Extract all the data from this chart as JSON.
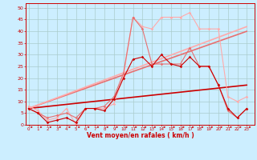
{
  "title": "",
  "xlabel": "Vent moyen/en rafales ( km/h )",
  "ylabel": "",
  "bg_color": "#cceeff",
  "grid_color": "#aacccc",
  "x_ticks": [
    0,
    1,
    2,
    3,
    4,
    5,
    6,
    7,
    8,
    9,
    10,
    11,
    12,
    13,
    14,
    15,
    16,
    17,
    18,
    19,
    20,
    21,
    22,
    23
  ],
  "y_ticks": [
    0,
    5,
    10,
    15,
    20,
    25,
    30,
    35,
    40,
    45,
    50
  ],
  "ylim": [
    0,
    52
  ],
  "xlim": [
    -0.3,
    23.8
  ],
  "series_data": [
    {
      "x": [
        0,
        1,
        2,
        3,
        4,
        5,
        6,
        7,
        8,
        9,
        10,
        11,
        12,
        13,
        14,
        15,
        16,
        17,
        18,
        19,
        20,
        21,
        22,
        23
      ],
      "y": [
        7,
        5,
        1,
        2,
        3,
        1,
        7,
        7,
        6,
        11,
        20,
        28,
        29,
        25,
        30,
        26,
        25,
        29,
        25,
        25,
        17,
        7,
        3,
        7
      ],
      "color": "#cc0000",
      "lw": 0.8,
      "marker": "D",
      "ms": 1.8,
      "zorder": 4
    },
    {
      "x": [
        0,
        1,
        2,
        3,
        4,
        5,
        6,
        7,
        8,
        9,
        10,
        11,
        12,
        13,
        14,
        15,
        16,
        17,
        18,
        19,
        20,
        21,
        22,
        23
      ],
      "y": [
        7,
        5,
        3,
        4,
        5,
        3,
        7,
        7,
        8,
        12,
        22,
        46,
        41,
        26,
        26,
        26,
        26,
        33,
        25,
        25,
        17,
        6,
        3,
        7
      ],
      "color": "#e87070",
      "lw": 0.8,
      "marker": "D",
      "ms": 1.8,
      "zorder": 3
    },
    {
      "x": [
        0,
        1,
        2,
        3,
        4,
        5,
        6,
        7,
        8,
        9,
        10,
        11,
        12,
        13,
        14,
        15,
        16,
        17,
        18,
        19,
        20,
        21,
        22,
        23
      ],
      "y": [
        8,
        6,
        2,
        3,
        7,
        0,
        7,
        7,
        7,
        9,
        21,
        46,
        42,
        41,
        46,
        46,
        46,
        48,
        41,
        41,
        41,
        12,
        10,
        12
      ],
      "color": "#ffaaaa",
      "lw": 0.8,
      "marker": "D",
      "ms": 1.8,
      "zorder": 2
    }
  ],
  "trend_lines": [
    {
      "x": [
        0,
        23
      ],
      "y": [
        7,
        17
      ],
      "color": "#cc0000",
      "lw": 1.2,
      "zorder": 1
    },
    {
      "x": [
        0,
        23
      ],
      "y": [
        7,
        40
      ],
      "color": "#e87070",
      "lw": 1.2,
      "zorder": 1
    },
    {
      "x": [
        0,
        23
      ],
      "y": [
        7,
        42
      ],
      "color": "#ffaaaa",
      "lw": 1.2,
      "zorder": 1
    }
  ],
  "arrow_color": "#cc0000",
  "label_color": "#cc0000"
}
